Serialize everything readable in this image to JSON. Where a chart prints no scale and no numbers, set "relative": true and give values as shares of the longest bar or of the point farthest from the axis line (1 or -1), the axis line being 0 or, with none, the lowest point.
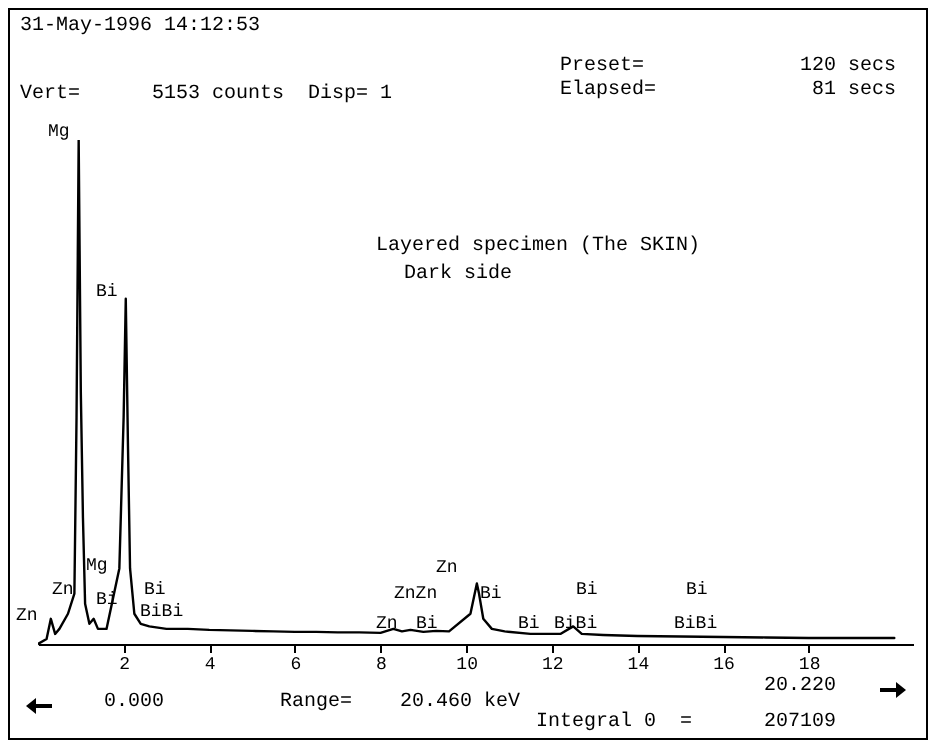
{
  "chart_data": {
    "type": "line",
    "relative": true,
    "xlim": [
      0,
      20.46
    ],
    "xticks": [
      2,
      4,
      6,
      8,
      10,
      12,
      14,
      16,
      18
    ],
    "grid": false,
    "series": [
      {
        "color": "#000000",
        "x": [
          0,
          0.2,
          0.3,
          0.4,
          0.5,
          0.7,
          0.85,
          0.9,
          0.95,
          1.0,
          1.05,
          1.1,
          1.2,
          1.3,
          1.4,
          1.6,
          1.9,
          2.0,
          2.05,
          2.1,
          2.15,
          2.25,
          2.4,
          2.6,
          3,
          3.5,
          4,
          4.5,
          5,
          5.5,
          6,
          6.5,
          7,
          7.5,
          8,
          8.3,
          8.5,
          8.7,
          9,
          9.3,
          9.6,
          10.1,
          10.25,
          10.3,
          10.4,
          10.6,
          10.9,
          11.5,
          12.2,
          12.5,
          12.7,
          13.2,
          14,
          15,
          16,
          17,
          18,
          19,
          20
        ],
        "values": [
          0,
          0.01,
          0.05,
          0.02,
          0.03,
          0.06,
          0.1,
          0.45,
          1.0,
          0.5,
          0.25,
          0.08,
          0.04,
          0.05,
          0.03,
          0.03,
          0.15,
          0.45,
          0.685,
          0.4,
          0.15,
          0.06,
          0.04,
          0.035,
          0.03,
          0.03,
          0.028,
          0.027,
          0.026,
          0.025,
          0.024,
          0.024,
          0.023,
          0.023,
          0.022,
          0.03,
          0.025,
          0.028,
          0.024,
          0.026,
          0.025,
          0.06,
          0.12,
          0.1,
          0.05,
          0.03,
          0.025,
          0.02,
          0.02,
          0.035,
          0.02,
          0.018,
          0.016,
          0.015,
          0.014,
          0.013,
          0.012,
          0.012,
          0.012
        ]
      }
    ],
    "annotations": [
      "31-May-1996 14:12:53",
      "Vert=      5153 counts  Disp= 1",
      "Preset=             120 secs",
      "Elapsed=             81 secs",
      "Layered specimen (The SKIN)",
      "Dark side",
      "0.000",
      "Range=    20.460 keV",
      "20.220",
      "Integral 0  =      207109",
      "Mg",
      "Bi",
      "Mg",
      "Zn",
      "Zn",
      "Bi",
      "Bi",
      "BiBi",
      "Zn",
      "ZnZn",
      "Zn",
      "Bi",
      "Bi",
      "Bi",
      "BiBi",
      "Bi",
      "Bi",
      "BiBi"
    ]
  }
}
